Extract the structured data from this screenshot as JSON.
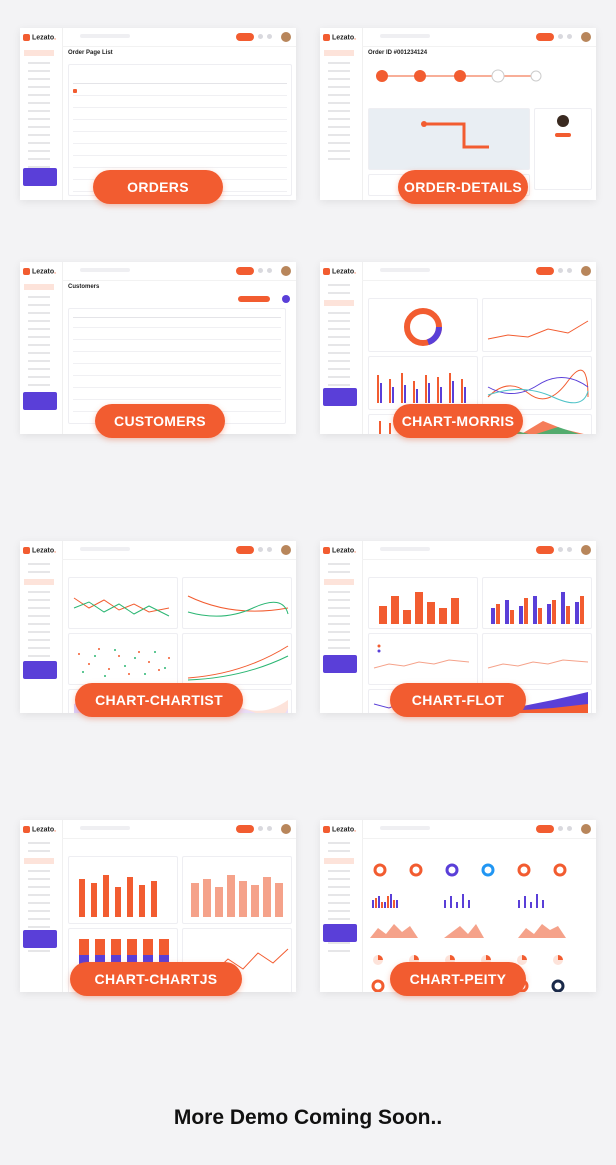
{
  "demos": [
    {
      "label": "ORDERS",
      "page_title": "Order Page List"
    },
    {
      "label": "ORDER-DETAILS",
      "page_title": "Order ID #001234124"
    },
    {
      "label": "CUSTOMERS",
      "page_title": "Customers"
    },
    {
      "label": "CHART-MORRIS",
      "page_title": ""
    },
    {
      "label": "CHART-CHARTIST",
      "page_title": ""
    },
    {
      "label": "CHART-FLOT",
      "page_title": ""
    },
    {
      "label": "CHART-CHARTJS",
      "page_title": ""
    },
    {
      "label": "CHART-PEITY",
      "page_title": ""
    }
  ],
  "brand": {
    "name": "Lezato",
    "accent": "#f25c30",
    "purple": "#5a3fd8"
  },
  "footer_text": "More Demo Coming Soon.."
}
